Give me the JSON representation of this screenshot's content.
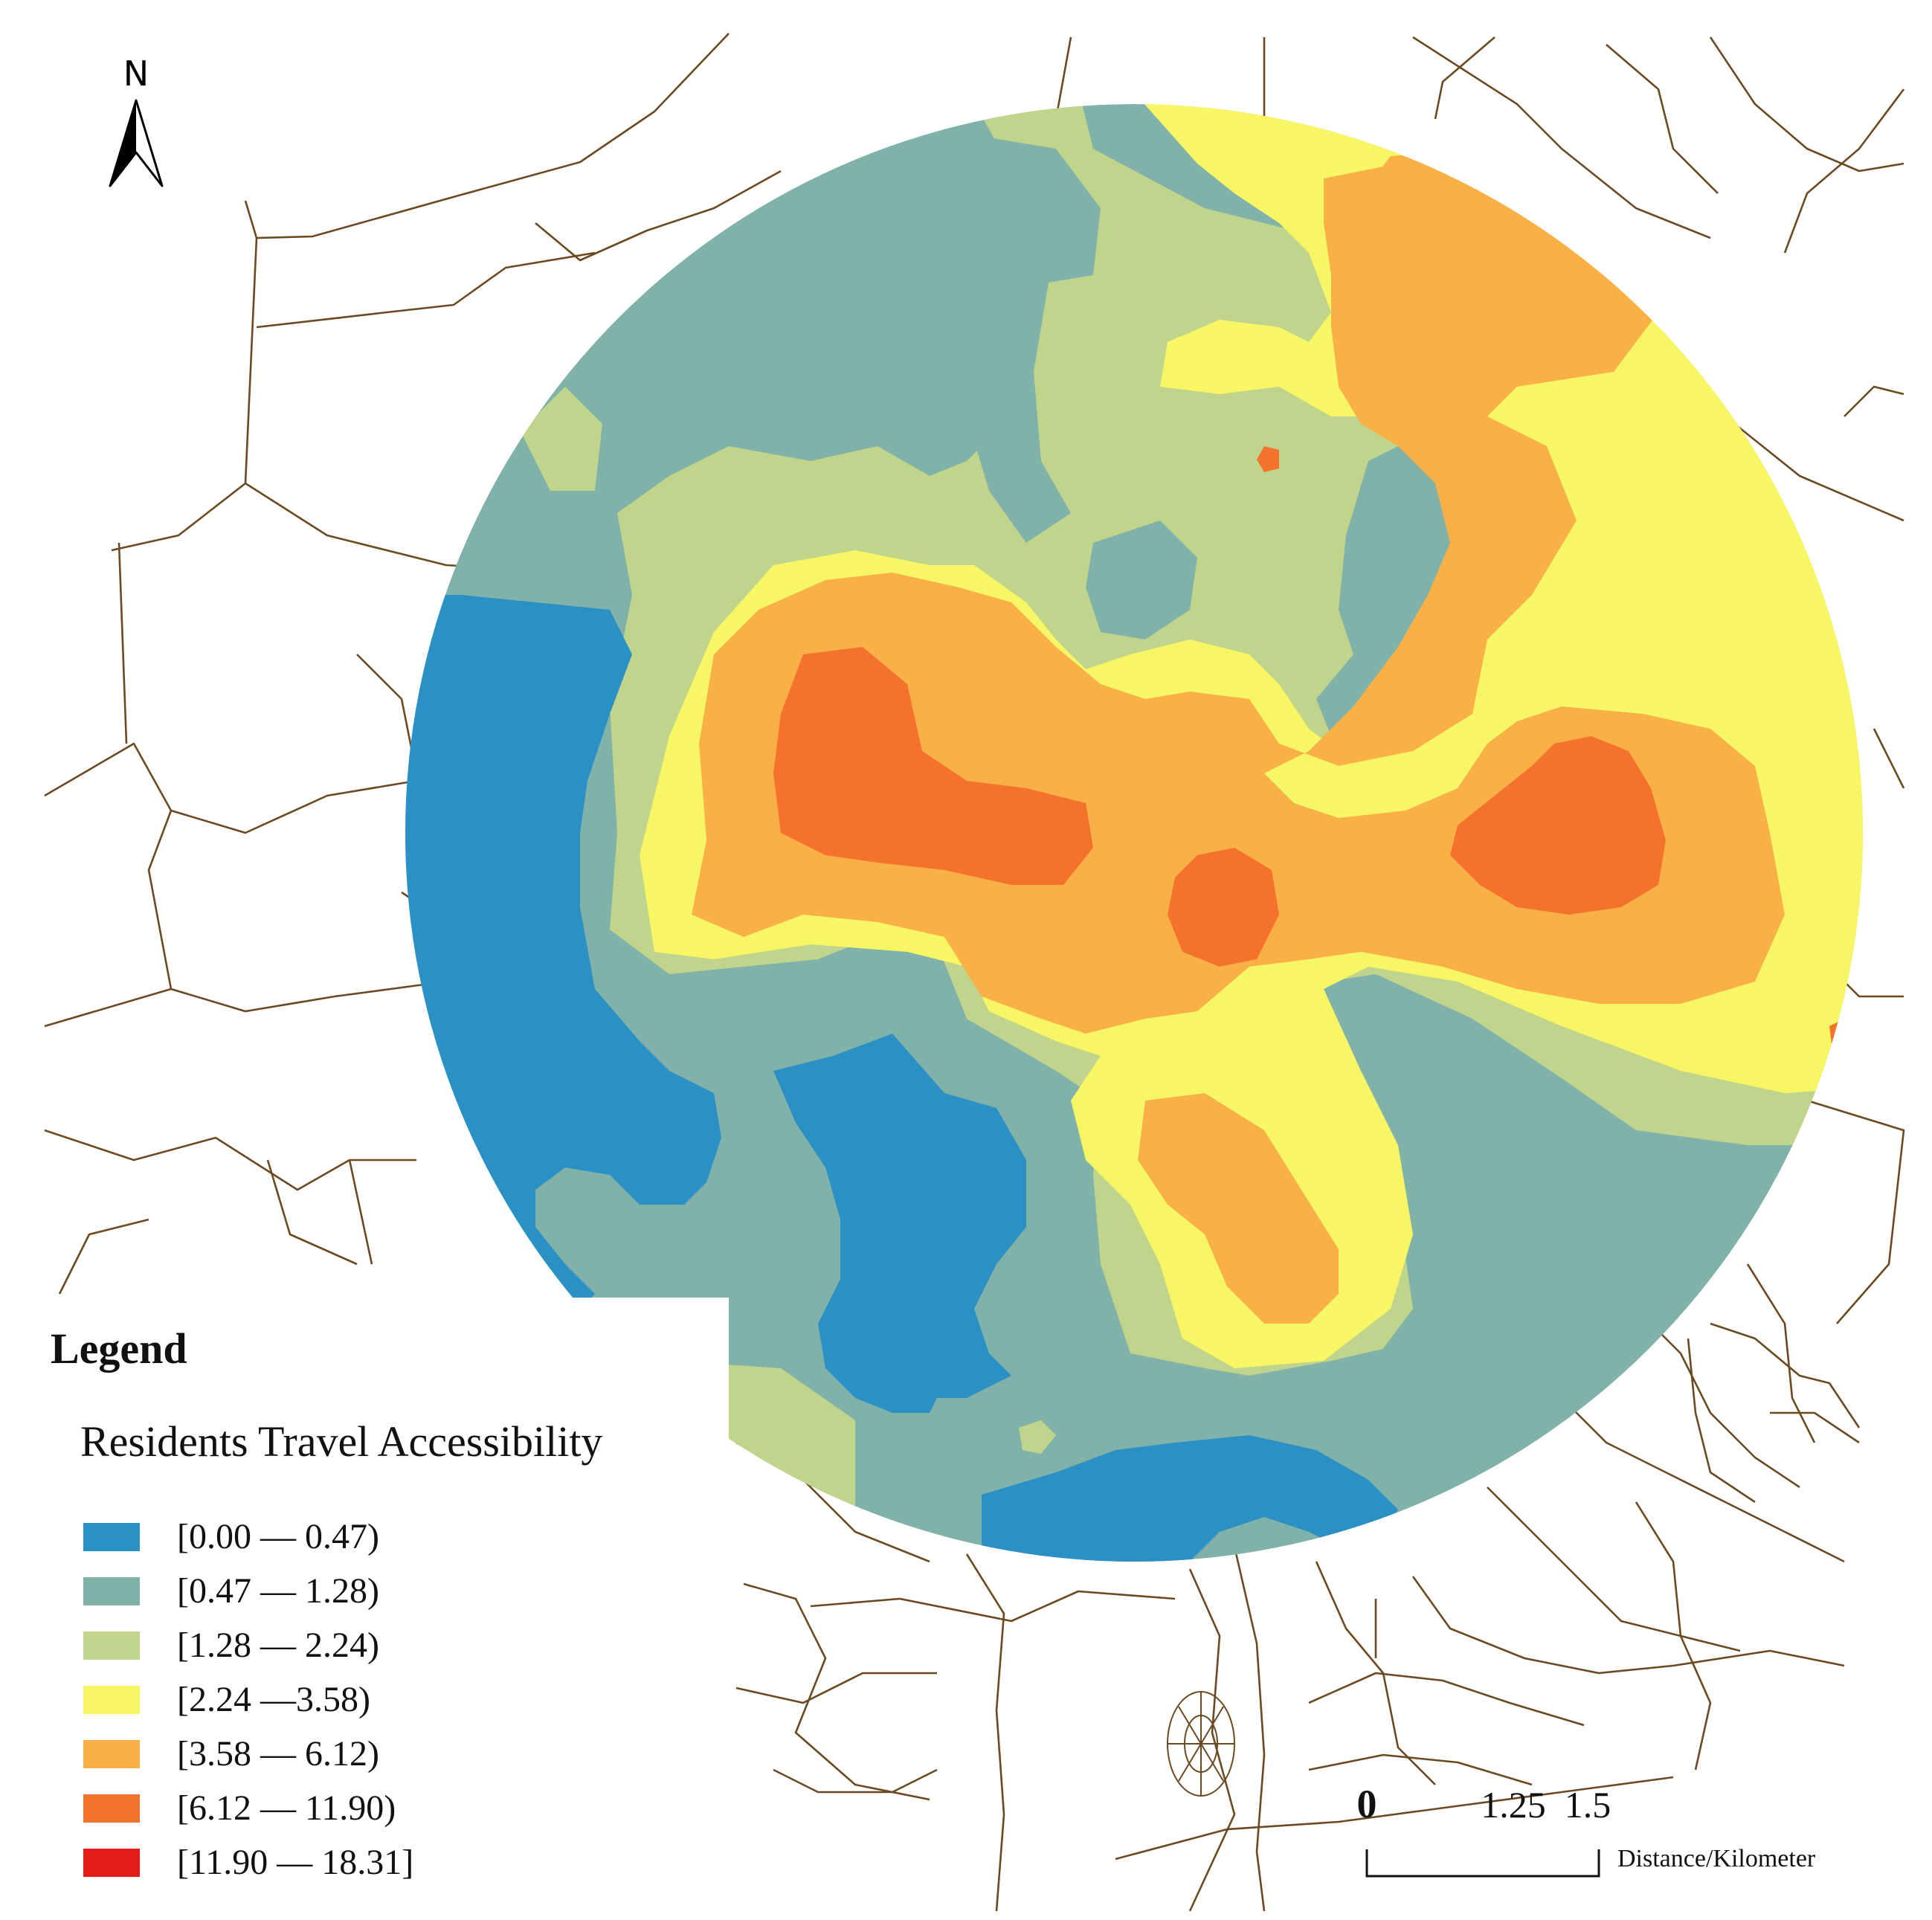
{
  "map": {
    "north_label": "N",
    "legend": {
      "title": "Legend",
      "subtitle": "Residents Travel Accessibility",
      "items": [
        {
          "label": "[0.00 — 0.47)",
          "color": "#2b91c5"
        },
        {
          "label": "[0.47 — 1.28)",
          "color": "#80b2aa"
        },
        {
          "label": "[1.28 — 2.24)",
          "color": "#c1d48c"
        },
        {
          "label": "[2.24 —3.58)",
          "color": "#f7f765"
        },
        {
          "label": "[3.58 — 6.12)",
          "color": "#f9b047"
        },
        {
          "label": "[6.12 — 11.90)",
          "color": "#f5722c"
        },
        {
          "label": "[11.90 — 18.31]",
          "color": "#e51b1b"
        }
      ]
    },
    "scale_bar": {
      "ticks": [
        "0",
        "1.25",
        "1.5"
      ],
      "unit_label": "Distance/Kilometer"
    },
    "colors": {
      "road": "#6b4a22",
      "background": "#ffffff"
    }
  }
}
